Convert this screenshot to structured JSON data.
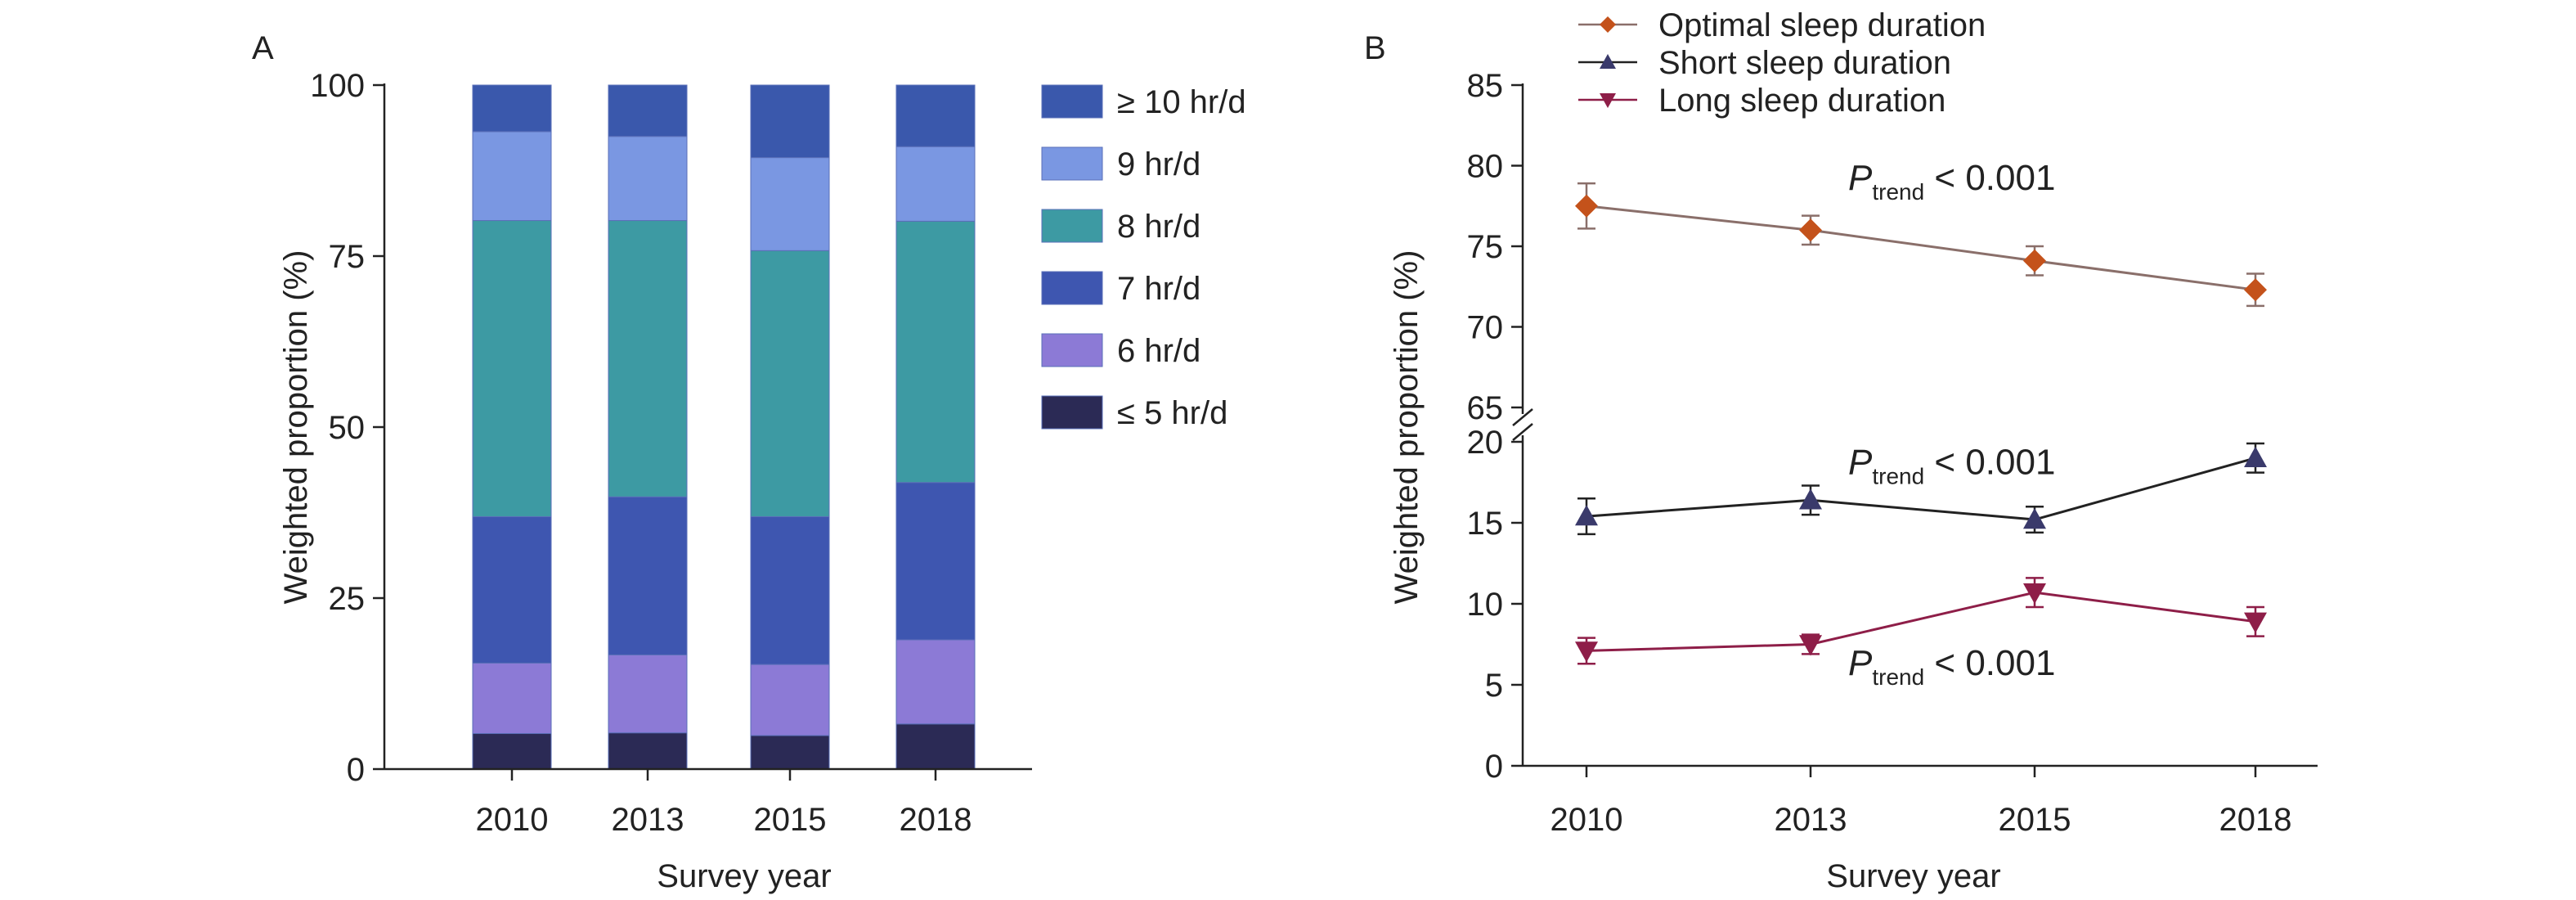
{
  "figure": {
    "panel_a_label": "A",
    "panel_b_label": "B"
  },
  "chart_data": [
    {
      "type": "bar",
      "stacked": true,
      "xlabel": "Survey year",
      "ylabel": "Weighted proportion (%)",
      "ylim": [
        0,
        100
      ],
      "yticks": [
        0,
        25,
        50,
        75,
        100
      ],
      "categories": [
        "2010",
        "2013",
        "2015",
        "2018"
      ],
      "legend_position": "right",
      "series": [
        {
          "name": "≤ 5 hr/d",
          "color": "#2b2a55",
          "values": [
            5.2,
            5.3,
            4.9,
            6.6
          ]
        },
        {
          "name": "6 hr/d",
          "color": "#8c7ad6",
          "values": [
            10.3,
            11.4,
            10.4,
            12.3
          ]
        },
        {
          "name": "7 hr/d",
          "color": "#3e56b0",
          "values": [
            21.4,
            23.1,
            21.6,
            23.0
          ]
        },
        {
          "name": "8 hr/d",
          "color": "#3d9aa3",
          "values": [
            43.3,
            40.4,
            38.9,
            38.2
          ]
        },
        {
          "name": "9 hr/d",
          "color": "#7a97e2",
          "values": [
            13.0,
            12.3,
            13.6,
            10.9
          ]
        },
        {
          "name": "≥ 10 hr/d",
          "color": "#3a58ac",
          "values": [
            6.8,
            7.5,
            10.6,
            9.0
          ]
        }
      ]
    },
    {
      "type": "line",
      "xlabel": "Survey year",
      "ylabel": "Weighted proportion (%)",
      "x": [
        "2010",
        "2013",
        "2015",
        "2018"
      ],
      "axis_break": true,
      "upper_ylim": [
        65,
        85
      ],
      "upper_yticks": [
        65,
        70,
        75,
        80,
        85
      ],
      "lower_ylim": [
        0,
        20
      ],
      "lower_yticks": [
        0,
        5,
        10,
        15,
        20
      ],
      "legend_position": "top",
      "series": [
        {
          "name": "Optimal sleep duration",
          "color": "#c4521b",
          "line_color": "#8a6f6a",
          "marker": "diamond",
          "segment": "upper",
          "values": [
            77.5,
            76.0,
            74.1,
            72.3
          ],
          "error": [
            1.4,
            0.9,
            0.9,
            1.0
          ]
        },
        {
          "name": "Short sleep duration",
          "color": "#3a3a6b",
          "line_color": "#222222",
          "marker": "triangle-up",
          "segment": "lower",
          "values": [
            15.4,
            16.4,
            15.2,
            19.0
          ],
          "error": [
            1.1,
            0.9,
            0.8,
            0.9
          ]
        },
        {
          "name": "Long sleep duration",
          "color": "#8e1e48",
          "line_color": "#8e1e48",
          "marker": "triangle-down",
          "segment": "lower",
          "values": [
            7.1,
            7.5,
            10.7,
            8.9
          ],
          "error": [
            0.8,
            0.6,
            0.9,
            0.9
          ]
        }
      ],
      "annotations": [
        {
          "prefix": "P",
          "sub": "trend",
          "text": " < 0.001",
          "segment": "upper",
          "x_index": 1.0,
          "y": 78.5
        },
        {
          "prefix": "P",
          "sub": "trend",
          "text": " < 0.001",
          "segment": "lower",
          "x_index": 1.0,
          "y": 18.0
        },
        {
          "prefix": "P",
          "sub": "trend",
          "text": " < 0.001",
          "segment": "lower",
          "x_index": 1.0,
          "y": 5.6
        }
      ]
    }
  ]
}
